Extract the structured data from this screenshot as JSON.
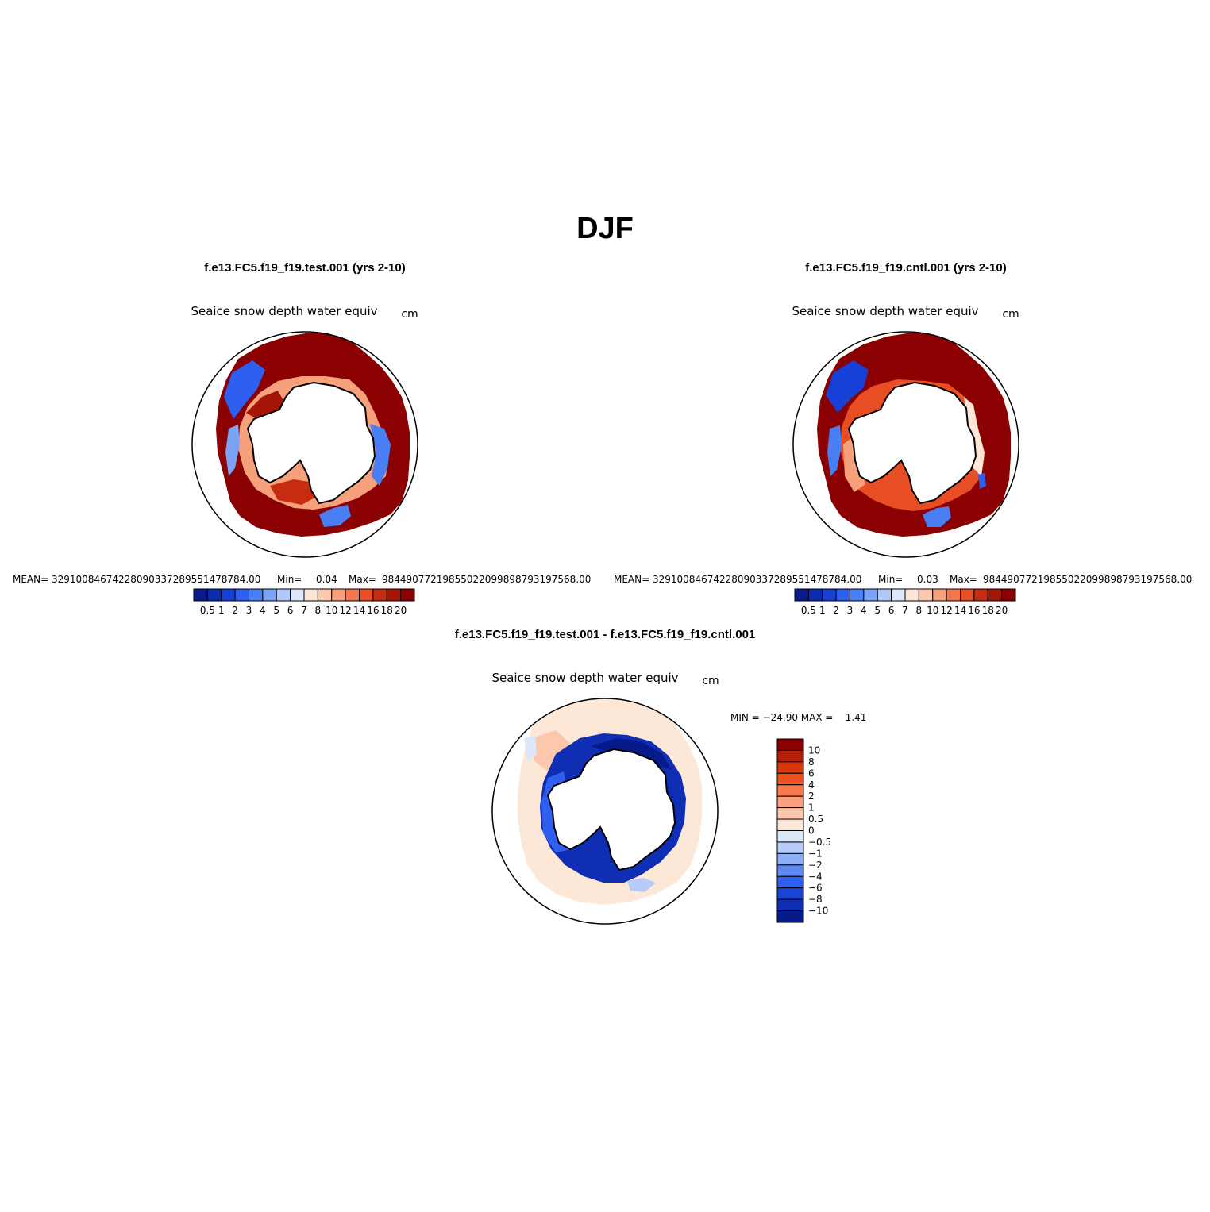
{
  "title": "DJF",
  "panels": [
    {
      "case": "f.e13.FC5.f19_f19.test.001 (yrs 2-10)",
      "variable": "Seaice snow depth water equiv",
      "units": "cm",
      "stats": {
        "mean_label": "MEAN=",
        "mean": "32910084674228090337289551478784.00",
        "min_label": "Min=",
        "min": "0.04",
        "max_label": "Max=",
        "max": "98449077219855022099898793197568.00"
      }
    },
    {
      "case": "f.e13.FC5.f19_f19.cntl.001 (yrs 2-10)",
      "variable": "Seaice snow depth water equiv",
      "units": "cm",
      "stats": {
        "mean_label": "MEAN=",
        "mean": "32910084674228090337289551478784.00",
        "min_label": "Min=",
        "min": "0.03",
        "max_label": "Max=",
        "max": "98449077219855022099898793197568.00"
      }
    }
  ],
  "diff": {
    "case": "f.e13.FC5.f19_f19.test.001 - f.e13.FC5.f19_f19.cntl.001",
    "variable": "Seaice snow depth water equiv",
    "units": "cm",
    "minmax": "MIN = −24.90 MAX =    1.41"
  },
  "colorbar_main": {
    "labels": [
      "0.5",
      "1",
      "2",
      "3",
      "4",
      "5",
      "6",
      "7",
      "8",
      "10",
      "12",
      "14",
      "16",
      "18",
      "20"
    ],
    "colors": [
      "#0a1a8c",
      "#0b2bb0",
      "#1740d6",
      "#2d5ff0",
      "#4a7ef5",
      "#7aa2f7",
      "#b1c8fa",
      "#dfe8fb",
      "#fde6d8",
      "#fcc8ad",
      "#f7a07c",
      "#f4764f",
      "#e84d24",
      "#c82c10",
      "#a61606",
      "#8b0000"
    ]
  },
  "colorbar_diff": {
    "labels": [
      "10",
      "8",
      "6",
      "4",
      "2",
      "1",
      "0.5",
      "0",
      "−0.5",
      "−1",
      "−2",
      "−4",
      "−6",
      "−8",
      "−10"
    ],
    "colors": [
      "#8b0000",
      "#b41e08",
      "#d9380f",
      "#f0501f",
      "#f7784d",
      "#faa07e",
      "#fcc7ad",
      "#fde8d8",
      "#dce7fa",
      "#b6cbf8",
      "#8eaef6",
      "#5e88f2",
      "#2f5ff0",
      "#1a44d5",
      "#0f2eb4",
      "#061a8a"
    ]
  }
}
